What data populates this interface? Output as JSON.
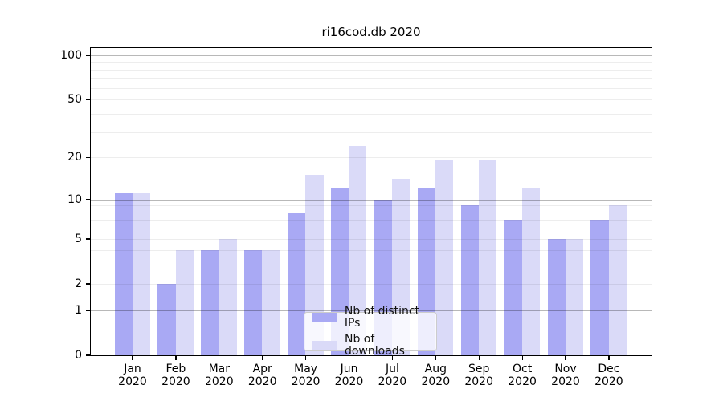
{
  "chart_data": {
    "type": "bar",
    "title": "ri16cod.db 2020",
    "categories": [
      "Jan",
      "Feb",
      "Mar",
      "Apr",
      "May",
      "Jun",
      "Jul",
      "Aug",
      "Sep",
      "Oct",
      "Nov",
      "Dec"
    ],
    "x_year": "2020",
    "series": [
      {
        "name": "Nb of distinct IPs",
        "color": "#a9a9f4",
        "values": [
          11,
          2,
          4,
          4,
          8,
          12,
          10,
          12,
          9,
          7,
          5,
          7
        ]
      },
      {
        "name": "Nb of downloads",
        "color": "#dadaf8",
        "values": [
          11,
          4,
          5,
          4,
          15,
          24,
          14,
          19,
          19,
          12,
          5,
          9
        ]
      }
    ],
    "xlabel": "",
    "ylabel": "",
    "yscale": "log10(1+y)",
    "ylim": [
      0,
      112
    ],
    "ytick_labels": [
      0,
      1,
      2,
      5,
      10,
      20,
      50,
      100
    ],
    "major_gridlines": [
      1,
      10,
      100
    ],
    "minor_gridlines": [
      2,
      3,
      4,
      5,
      6,
      7,
      8,
      9,
      20,
      30,
      40,
      50,
      60,
      70,
      80,
      90
    ],
    "grid": true,
    "legend_position": "lower center"
  }
}
